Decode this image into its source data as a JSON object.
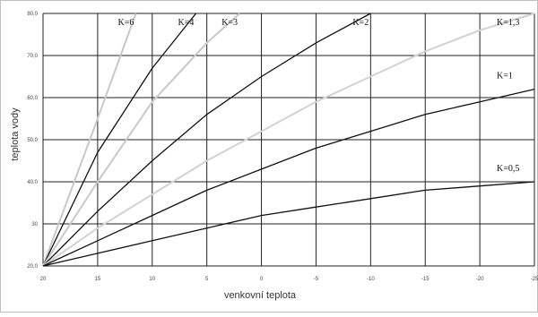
{
  "chart_data": {
    "type": "line",
    "title": "",
    "xlabel": "venkovní teplota",
    "ylabel": "teplota vody",
    "xlim": [
      20,
      -25
    ],
    "ylim": [
      20,
      80
    ],
    "x_ticks": [
      20,
      15,
      10,
      5,
      0,
      -5,
      -10,
      -15,
      -20,
      -25
    ],
    "x_tick_labels": [
      "20",
      "15",
      "10",
      "5",
      "0",
      "-5",
      "-10",
      "-15",
      "-20",
      "-25"
    ],
    "y_ticks": [
      20,
      30,
      40,
      50,
      60,
      70,
      80
    ],
    "y_tick_labels": [
      "20,0",
      "30",
      "40,0",
      "50,0",
      "60,0",
      "70,0",
      "80,0"
    ],
    "grid": true,
    "series": [
      {
        "name": "K=6",
        "color": "#c8c8c8",
        "x": [
          20,
          15,
          11.5
        ],
        "y": [
          20,
          55,
          80
        ]
      },
      {
        "name": "K=4",
        "color": "#111111",
        "x": [
          20,
          15,
          10,
          6
        ],
        "y": [
          20,
          47,
          67,
          80
        ]
      },
      {
        "name": "K=3",
        "color": "#c8c8c8",
        "x": [
          20,
          15,
          10,
          5,
          2
        ],
        "y": [
          20,
          40,
          59,
          73,
          80
        ]
      },
      {
        "name": "K=2",
        "color": "#111111",
        "x": [
          20,
          15,
          10,
          5,
          0,
          -5,
          -10
        ],
        "y": [
          20,
          33,
          45,
          56,
          65,
          73,
          80
        ]
      },
      {
        "name": "K=1,3",
        "color": "#d2d2d2",
        "x": [
          20,
          15,
          10,
          5,
          0,
          -5,
          -10,
          -15,
          -20,
          -25
        ],
        "y": [
          20,
          29,
          37,
          45,
          52,
          59,
          65,
          71,
          76,
          80
        ]
      },
      {
        "name": "K=1",
        "color": "#111111",
        "x": [
          20,
          15,
          10,
          5,
          0,
          -5,
          -10,
          -15,
          -20,
          -25
        ],
        "y": [
          20,
          26,
          32,
          38,
          43,
          48,
          52,
          56,
          59,
          62
        ]
      },
      {
        "name": "K=0,5",
        "color": "#111111",
        "x": [
          20,
          15,
          10,
          5,
          0,
          -5,
          -10,
          -15,
          -20,
          -25
        ],
        "y": [
          20,
          23,
          26,
          29,
          32,
          34,
          36,
          38,
          39,
          40
        ]
      }
    ]
  }
}
